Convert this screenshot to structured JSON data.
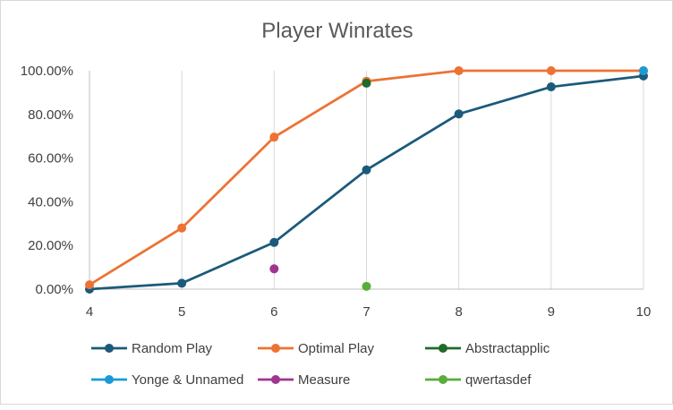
{
  "chart_data": {
    "type": "line",
    "title": "Player Winrates",
    "xlabel": "",
    "ylabel": "",
    "x": [
      4,
      5,
      6,
      7,
      8,
      9,
      10
    ],
    "xlim": [
      4,
      10
    ],
    "ylim": [
      0,
      100
    ],
    "yticks": [
      0,
      20,
      40,
      60,
      80,
      100
    ],
    "ytick_labels": [
      "0.00%",
      "20.00%",
      "40.00%",
      "60.00%",
      "80.00%",
      "100.00%"
    ],
    "xtick_labels": [
      "4",
      "5",
      "6",
      "7",
      "8",
      "9",
      "10"
    ],
    "grid": "vertical",
    "legend_position": "bottom",
    "series": [
      {
        "name": "Random Play",
        "color": "#1b5a7a",
        "line": true,
        "points": [
          [
            4,
            0.0
          ],
          [
            5,
            2.7
          ],
          [
            6,
            21.4
          ],
          [
            7,
            54.6
          ],
          [
            8,
            80.2
          ],
          [
            9,
            92.6
          ],
          [
            10,
            97.6
          ]
        ]
      },
      {
        "name": "Optimal Play",
        "color": "#ed7233",
        "line": true,
        "points": [
          [
            4,
            2.0
          ],
          [
            5,
            28.0
          ],
          [
            6,
            69.6
          ],
          [
            7,
            95.2
          ],
          [
            8,
            100.0
          ],
          [
            9,
            100.0
          ],
          [
            10,
            100.0
          ]
        ]
      },
      {
        "name": "Abstractapplic",
        "color": "#1f6b2a",
        "line": false,
        "points": [
          [
            7,
            94.3
          ]
        ]
      },
      {
        "name": "Yonge & Unnamed",
        "color": "#1a9bd7",
        "line": false,
        "points": [
          [
            10,
            100.0
          ]
        ]
      },
      {
        "name": "Measure",
        "color": "#a03590",
        "line": false,
        "points": [
          [
            6,
            9.3
          ]
        ]
      },
      {
        "name": "qwertasdef",
        "color": "#5aad3a",
        "line": false,
        "points": [
          [
            7,
            1.3
          ]
        ]
      }
    ]
  }
}
